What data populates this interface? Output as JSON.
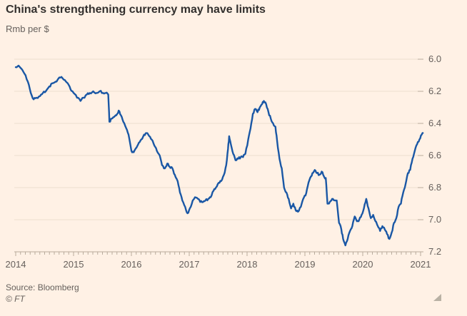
{
  "header": {
    "title": "China's strengthening currency may have limits",
    "subtitle": "Rmb per $"
  },
  "footer": {
    "source": "Source: Bloomberg",
    "copyright": "© FT"
  },
  "colors": {
    "background": "#FFF1E5",
    "line": "#1a57a5",
    "gridline": "#ecdfd0",
    "axis": "#b9ab9c",
    "text": "#66605C",
    "title_text": "#33302E"
  },
  "chart_data": {
    "type": "line",
    "title": "China's strengthening currency may have limits",
    "subtitle": "Rmb per $",
    "xlabel": "",
    "ylabel": "Rmb per $",
    "x_ticks": [
      2014,
      2015,
      2016,
      2017,
      2018,
      2019,
      2020,
      2021
    ],
    "y_ticks": [
      6.0,
      6.2,
      6.4,
      6.6,
      6.8,
      7.0,
      7.2
    ],
    "y_axis": {
      "min": 6.0,
      "max": 7.2,
      "inverted": true,
      "side": "right"
    },
    "grid": "horizontal",
    "legend": "none",
    "minor_x_ticks": "monthly",
    "series": [
      {
        "name": "Rmb per $",
        "color": "#1a57a5",
        "points": [
          [
            2014.0,
            6.05
          ],
          [
            2014.05,
            6.04
          ],
          [
            2014.1,
            6.06
          ],
          [
            2014.15,
            6.09
          ],
          [
            2014.21,
            6.14
          ],
          [
            2014.26,
            6.21
          ],
          [
            2014.31,
            6.25
          ],
          [
            2014.36,
            6.24
          ],
          [
            2014.42,
            6.23
          ],
          [
            2014.47,
            6.21
          ],
          [
            2014.52,
            6.2
          ],
          [
            2014.58,
            6.17
          ],
          [
            2014.63,
            6.15
          ],
          [
            2014.69,
            6.14
          ],
          [
            2014.74,
            6.12
          ],
          [
            2014.79,
            6.11
          ],
          [
            2014.85,
            6.13
          ],
          [
            2014.9,
            6.15
          ],
          [
            2014.95,
            6.19
          ],
          [
            2015.0,
            6.21
          ],
          [
            2015.06,
            6.24
          ],
          [
            2015.12,
            6.26
          ],
          [
            2015.17,
            6.24
          ],
          [
            2015.23,
            6.22
          ],
          [
            2015.28,
            6.21
          ],
          [
            2015.34,
            6.2
          ],
          [
            2015.4,
            6.21
          ],
          [
            2015.45,
            6.2
          ],
          [
            2015.51,
            6.21
          ],
          [
            2015.56,
            6.21
          ],
          [
            2015.6,
            6.22
          ],
          [
            2015.62,
            6.39
          ],
          [
            2015.66,
            6.37
          ],
          [
            2015.7,
            6.36
          ],
          [
            2015.74,
            6.35
          ],
          [
            2015.78,
            6.32
          ],
          [
            2015.82,
            6.35
          ],
          [
            2015.86,
            6.39
          ],
          [
            2015.91,
            6.43
          ],
          [
            2015.95,
            6.47
          ],
          [
            2016.0,
            6.57
          ],
          [
            2016.04,
            6.58
          ],
          [
            2016.09,
            6.55
          ],
          [
            2016.13,
            6.52
          ],
          [
            2016.17,
            6.5
          ],
          [
            2016.22,
            6.47
          ],
          [
            2016.26,
            6.46
          ],
          [
            2016.31,
            6.48
          ],
          [
            2016.35,
            6.5
          ],
          [
            2016.4,
            6.54
          ],
          [
            2016.44,
            6.57
          ],
          [
            2016.49,
            6.6
          ],
          [
            2016.53,
            6.66
          ],
          [
            2016.58,
            6.68
          ],
          [
            2016.62,
            6.65
          ],
          [
            2016.66,
            6.67
          ],
          [
            2016.71,
            6.68
          ],
          [
            2016.75,
            6.72
          ],
          [
            2016.8,
            6.76
          ],
          [
            2016.84,
            6.83
          ],
          [
            2016.88,
            6.88
          ],
          [
            2016.93,
            6.92
          ],
          [
            2016.97,
            6.96
          ],
          [
            2017.01,
            6.93
          ],
          [
            2017.06,
            6.88
          ],
          [
            2017.1,
            6.86
          ],
          [
            2017.15,
            6.87
          ],
          [
            2017.19,
            6.89
          ],
          [
            2017.24,
            6.89
          ],
          [
            2017.28,
            6.88
          ],
          [
            2017.33,
            6.87
          ],
          [
            2017.37,
            6.86
          ],
          [
            2017.42,
            6.82
          ],
          [
            2017.46,
            6.8
          ],
          [
            2017.51,
            6.77
          ],
          [
            2017.55,
            6.76
          ],
          [
            2017.6,
            6.72
          ],
          [
            2017.64,
            6.66
          ],
          [
            2017.67,
            6.56
          ],
          [
            2017.69,
            6.48
          ],
          [
            2017.72,
            6.53
          ],
          [
            2017.76,
            6.59
          ],
          [
            2017.8,
            6.63
          ],
          [
            2017.85,
            6.62
          ],
          [
            2017.89,
            6.61
          ],
          [
            2017.93,
            6.61
          ],
          [
            2017.97,
            6.59
          ],
          [
            2018.02,
            6.5
          ],
          [
            2018.06,
            6.43
          ],
          [
            2018.1,
            6.34
          ],
          [
            2018.14,
            6.31
          ],
          [
            2018.18,
            6.33
          ],
          [
            2018.22,
            6.3
          ],
          [
            2018.26,
            6.28
          ],
          [
            2018.29,
            6.26
          ],
          [
            2018.33,
            6.28
          ],
          [
            2018.37,
            6.33
          ],
          [
            2018.41,
            6.37
          ],
          [
            2018.45,
            6.4
          ],
          [
            2018.49,
            6.42
          ],
          [
            2018.52,
            6.51
          ],
          [
            2018.56,
            6.62
          ],
          [
            2018.6,
            6.68
          ],
          [
            2018.64,
            6.8
          ],
          [
            2018.68,
            6.83
          ],
          [
            2018.72,
            6.87
          ],
          [
            2018.76,
            6.93
          ],
          [
            2018.8,
            6.9
          ],
          [
            2018.84,
            6.94
          ],
          [
            2018.88,
            6.95
          ],
          [
            2018.93,
            6.92
          ],
          [
            2018.97,
            6.87
          ],
          [
            2019.01,
            6.85
          ],
          [
            2019.05,
            6.79
          ],
          [
            2019.09,
            6.74
          ],
          [
            2019.13,
            6.71
          ],
          [
            2019.17,
            6.69
          ],
          [
            2019.21,
            6.71
          ],
          [
            2019.25,
            6.72
          ],
          [
            2019.29,
            6.7
          ],
          [
            2019.33,
            6.73
          ],
          [
            2019.36,
            6.74
          ],
          [
            2019.39,
            6.9
          ],
          [
            2019.43,
            6.89
          ],
          [
            2019.47,
            6.87
          ],
          [
            2019.51,
            6.88
          ],
          [
            2019.55,
            6.88
          ],
          [
            2019.59,
            7.02
          ],
          [
            2019.63,
            7.06
          ],
          [
            2019.66,
            7.12
          ],
          [
            2019.7,
            7.16
          ],
          [
            2019.74,
            7.12
          ],
          [
            2019.78,
            7.07
          ],
          [
            2019.82,
            7.04
          ],
          [
            2019.86,
            6.98
          ],
          [
            2019.9,
            7.01
          ],
          [
            2019.94,
            7.0
          ],
          [
            2019.98,
            6.97
          ],
          [
            2020.02,
            6.93
          ],
          [
            2020.06,
            6.87
          ],
          [
            2020.1,
            6.93
          ],
          [
            2020.14,
            6.99
          ],
          [
            2020.18,
            6.97
          ],
          [
            2020.22,
            7.01
          ],
          [
            2020.26,
            7.04
          ],
          [
            2020.3,
            7.07
          ],
          [
            2020.34,
            7.04
          ],
          [
            2020.38,
            7.06
          ],
          [
            2020.42,
            7.09
          ],
          [
            2020.46,
            7.12
          ],
          [
            2020.5,
            7.08
          ],
          [
            2020.54,
            7.02
          ],
          [
            2020.58,
            6.99
          ],
          [
            2020.62,
            6.92
          ],
          [
            2020.66,
            6.9
          ],
          [
            2020.7,
            6.83
          ],
          [
            2020.74,
            6.78
          ],
          [
            2020.78,
            6.71
          ],
          [
            2020.82,
            6.69
          ],
          [
            2020.86,
            6.62
          ],
          [
            2020.9,
            6.57
          ],
          [
            2020.94,
            6.53
          ],
          [
            2020.98,
            6.5
          ],
          [
            2021.02,
            6.47
          ],
          [
            2021.04,
            6.46
          ]
        ]
      }
    ],
    "source": "Source: Bloomberg",
    "copyright": "© FT"
  }
}
